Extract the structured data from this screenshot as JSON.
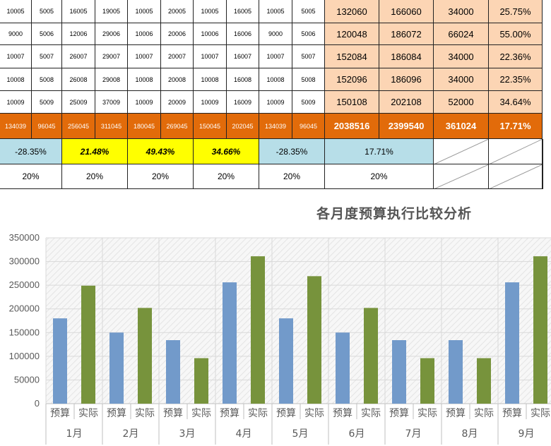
{
  "table": {
    "data_rows": [
      [
        "10005",
        "5005",
        "16005",
        "19005",
        "10005",
        "20005",
        "10005",
        "16005",
        "10005",
        "5005",
        "132060",
        "166060",
        "34000",
        "25.75%"
      ],
      [
        "9000",
        "5006",
        "12006",
        "29006",
        "10006",
        "20006",
        "10006",
        "16006",
        "9000",
        "5006",
        "120048",
        "186072",
        "66024",
        "55.00%"
      ],
      [
        "10007",
        "5007",
        "26007",
        "29007",
        "10007",
        "20007",
        "10007",
        "16007",
        "10007",
        "5007",
        "152084",
        "186084",
        "34000",
        "22.36%"
      ],
      [
        "10008",
        "5008",
        "26008",
        "29008",
        "10008",
        "20008",
        "10008",
        "16008",
        "10008",
        "5008",
        "152096",
        "186096",
        "34000",
        "22.35%"
      ],
      [
        "10009",
        "5009",
        "25009",
        "37009",
        "10009",
        "20009",
        "10009",
        "16009",
        "10009",
        "5009",
        "150108",
        "202108",
        "52000",
        "34.64%"
      ]
    ],
    "total_row": [
      "134039",
      "96045",
      "256045",
      "311045",
      "180045",
      "269045",
      "150045",
      "202045",
      "134039",
      "96045",
      "2038516",
      "2399540",
      "361024",
      "17.71%"
    ],
    "rate_row": [
      "-28.35%",
      "21.48%",
      "49.43%",
      "34.66%",
      "-28.35%",
      "17.71%"
    ],
    "target_row": [
      "20%",
      "20%",
      "20%",
      "20%",
      "20%",
      "20%"
    ],
    "colors": {
      "peach": "#fcd5b4",
      "orange": "#e26b0a",
      "light_blue": "#b7dee8",
      "yellow": "#ffff00"
    }
  },
  "chart_data": {
    "type": "bar",
    "title": "各月度预算执行比较分析",
    "categories": [
      "1月",
      "2月",
      "3月",
      "4月",
      "5月",
      "6月",
      "7月",
      "8月",
      "9月"
    ],
    "sub_labels": [
      "预算",
      "实际"
    ],
    "series": [
      {
        "name": "预算",
        "color": "#729aca",
        "values": [
          180045,
          150045,
          134039,
          256045,
          180045,
          150045,
          134039,
          134039,
          256045
        ]
      },
      {
        "name": "实际",
        "color": "#77933c",
        "values": [
          249000,
          202045,
          96045,
          311045,
          269045,
          202045,
          96045,
          96045,
          311045
        ]
      }
    ],
    "y_ticks": [
      0,
      50000,
      100000,
      150000,
      200000,
      250000,
      300000,
      350000
    ],
    "ylim": [
      0,
      350000
    ],
    "grid": true,
    "legend": "none"
  }
}
